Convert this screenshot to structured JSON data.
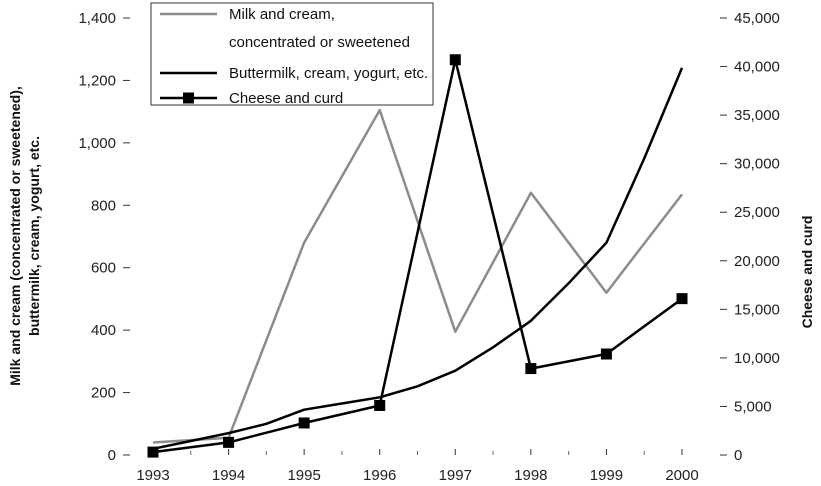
{
  "chart_data": {
    "type": "line",
    "title": "",
    "x": [
      "1993",
      "1994",
      "1995",
      "1996",
      "1997",
      "1998",
      "1999",
      "2000"
    ],
    "y_left": {
      "label_lines": [
        "Milk and cream (concentrated or sweetened),",
        "buttermilk, cream, yogurt, etc."
      ],
      "ylim": [
        0,
        1400
      ],
      "ticks": [
        "0",
        "200",
        "400",
        "600",
        "800",
        "1,000",
        "1,200",
        "1,400"
      ]
    },
    "y_right": {
      "label": "Cheese and curd",
      "ylim": [
        0,
        45000
      ],
      "ticks": [
        "0",
        "5,000",
        "10,000",
        "15,000",
        "20,000",
        "25,000",
        "30,000",
        "35,000",
        "40,000",
        "45,000"
      ]
    },
    "grid": false,
    "legend_position": "top-left",
    "series": [
      {
        "name_lines": [
          "Milk and cream,",
          "concentrated or sweetened"
        ],
        "axis": "left",
        "color": "#8c8c8c",
        "marker": "none",
        "x": [
          1993,
          1994,
          1995,
          1996,
          1997,
          1998,
          1999,
          2000
        ],
        "values": [
          40,
          55,
          680,
          1105,
          395,
          840,
          520,
          835
        ]
      },
      {
        "name_lines": [
          "Buttermilk, cream, yogurt, etc."
        ],
        "axis": "left",
        "color": "#000000",
        "marker": "none",
        "x": [
          1993,
          1993.5,
          1994,
          1994.5,
          1995,
          1995.5,
          1996,
          1996.5,
          1997,
          1997.5,
          1998,
          1998.5,
          1999,
          1999.5,
          2000
        ],
        "values": [
          20,
          45,
          70,
          100,
          145,
          165,
          185,
          220,
          270,
          345,
          430,
          550,
          680,
          950,
          1240
        ]
      },
      {
        "name_lines": [
          "Cheese and curd"
        ],
        "axis": "right",
        "color": "#000000",
        "marker": "square",
        "x": [
          1993,
          1994,
          1995,
          1996,
          1997,
          1998,
          1999,
          2000
        ],
        "values": [
          300,
          1300,
          3300,
          5100,
          40700,
          8900,
          10400,
          16100
        ]
      }
    ]
  }
}
